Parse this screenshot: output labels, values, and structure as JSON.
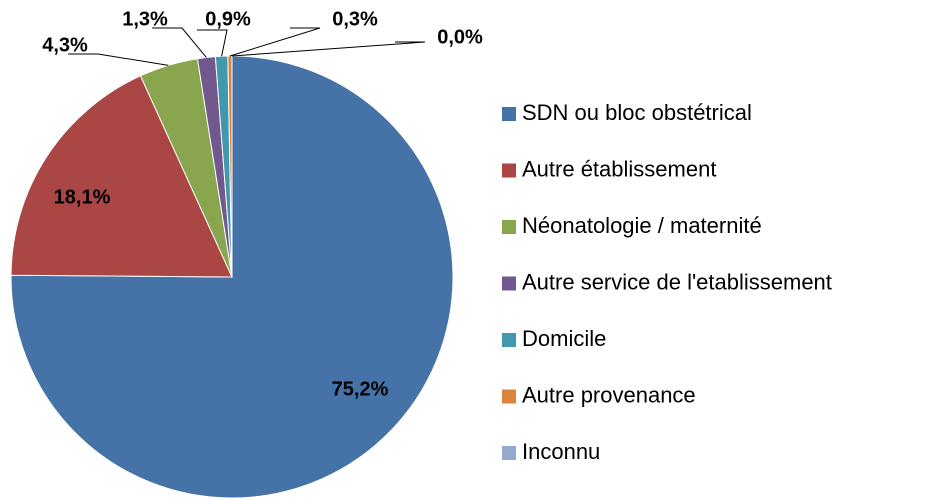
{
  "chart_data": {
    "type": "pie",
    "categories": [
      "SDN ou bloc obstétrical",
      "Autre établissement",
      "Néonatologie / maternité",
      "Autre service de l'etablissement",
      "Domicile",
      "Autre provenance",
      "Inconnu"
    ],
    "values": [
      75.2,
      18.1,
      4.3,
      1.3,
      0.9,
      0.3,
      0.0
    ],
    "value_labels": [
      "75,2%",
      "18,1%",
      "4,3%",
      "1,3%",
      "0,9%",
      "0,3%",
      "0,0%"
    ],
    "colors": [
      "#4572A7",
      "#AA4643",
      "#89A54E",
      "#71588F",
      "#4198AF",
      "#DB843D",
      "#93A9CF"
    ],
    "legend": "right"
  }
}
